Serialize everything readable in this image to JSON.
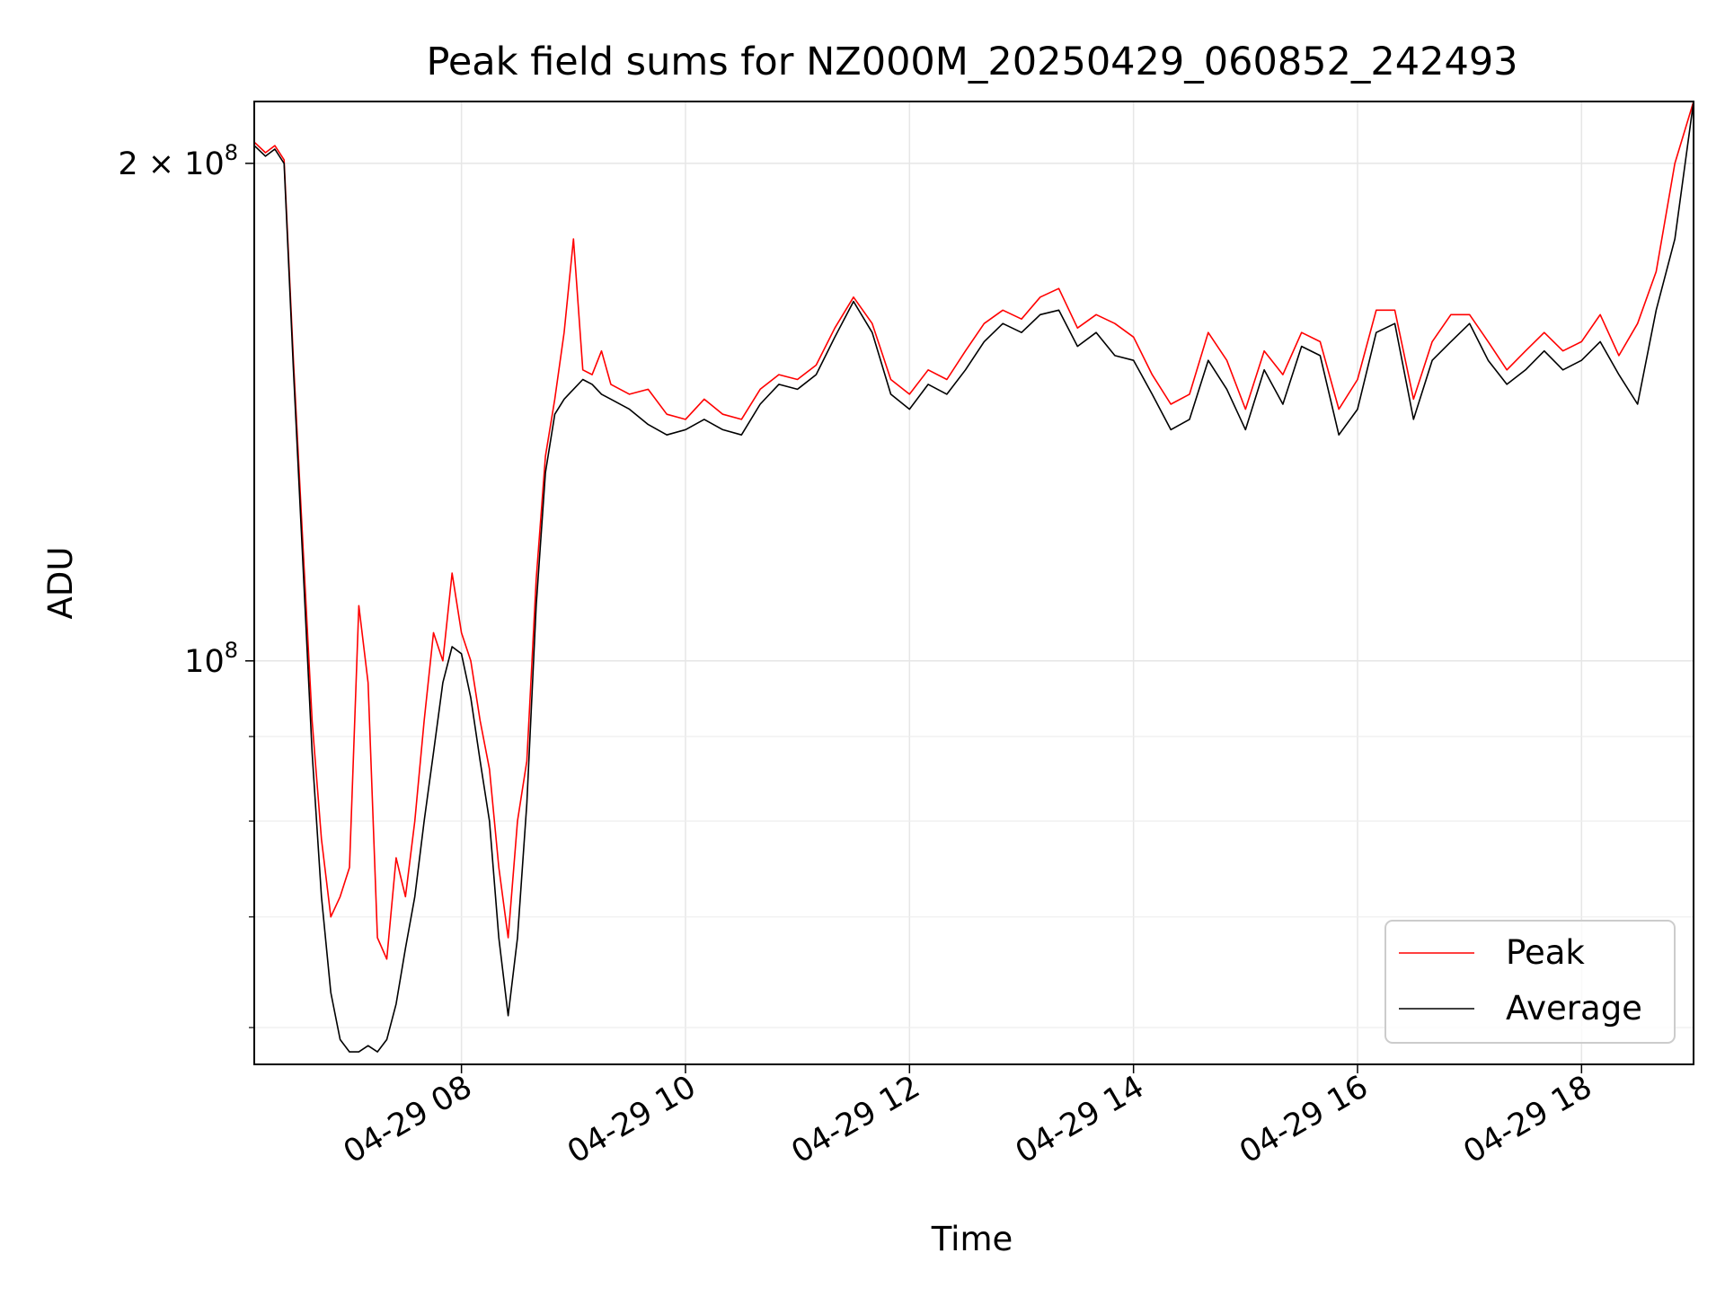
{
  "chart_data": {
    "type": "line",
    "title": "Peak field sums for NZ000M_20250429_060852_242493",
    "xlabel": "Time",
    "ylabel": "ADU",
    "y_scale": "log",
    "ylim": [
      57000000,
      218000000
    ],
    "xlim": [
      "04-29 06:09",
      "04-29 19:00"
    ],
    "grid": true,
    "legend_position": "lower right",
    "x_ticks": [
      "04-29 08",
      "04-29 10",
      "04-29 12",
      "04-29 14",
      "04-29 16",
      "04-29 18"
    ],
    "y_ticks": [
      {
        "value": 200000000,
        "label_base": "2 × 10",
        "label_exp": "8"
      },
      {
        "value": 100000000,
        "label_base": "10",
        "label_exp": "8"
      }
    ],
    "series": [
      {
        "name": "Peak",
        "color": "#ff0000"
      },
      {
        "name": "Average",
        "color": "#000000"
      }
    ],
    "x": [
      "06:09",
      "06:15",
      "06:20",
      "06:25",
      "06:30",
      "06:35",
      "06:40",
      "06:45",
      "06:50",
      "06:55",
      "07:00",
      "07:05",
      "07:10",
      "07:15",
      "07:20",
      "07:25",
      "07:30",
      "07:35",
      "07:40",
      "07:45",
      "07:50",
      "07:55",
      "08:00",
      "08:05",
      "08:10",
      "08:15",
      "08:20",
      "08:25",
      "08:30",
      "08:35",
      "08:40",
      "08:45",
      "08:50",
      "08:55",
      "09:00",
      "09:05",
      "09:10",
      "09:15",
      "09:20",
      "09:30",
      "09:40",
      "09:50",
      "10:00",
      "10:10",
      "10:20",
      "10:30",
      "10:40",
      "10:50",
      "11:00",
      "11:10",
      "11:20",
      "11:30",
      "11:40",
      "11:50",
      "12:00",
      "12:10",
      "12:20",
      "12:30",
      "12:40",
      "12:50",
      "13:00",
      "13:10",
      "13:20",
      "13:30",
      "13:40",
      "13:50",
      "14:00",
      "14:10",
      "14:20",
      "14:30",
      "14:40",
      "14:50",
      "15:00",
      "15:10",
      "15:20",
      "15:30",
      "15:40",
      "15:50",
      "16:00",
      "16:10",
      "16:20",
      "16:30",
      "16:40",
      "16:50",
      "17:00",
      "17:10",
      "17:20",
      "17:30",
      "17:40",
      "17:50",
      "18:00",
      "18:10",
      "18:20",
      "18:30",
      "18:40",
      "18:50",
      "19:00"
    ],
    "average": [
      205000000,
      202000000,
      204000000,
      200000000,
      150000000,
      115000000,
      88000000,
      72000000,
      63000000,
      59000000,
      58000000,
      58000000,
      58500000,
      58000000,
      59000000,
      62000000,
      67000000,
      72000000,
      80000000,
      88000000,
      97000000,
      102000000,
      101000000,
      95000000,
      87000000,
      80000000,
      68000000,
      61000000,
      68000000,
      82000000,
      108000000,
      130000000,
      141000000,
      144000000,
      146000000,
      148000000,
      147000000,
      145000000,
      144000000,
      142000000,
      139000000,
      137000000,
      138000000,
      140000000,
      138000000,
      137000000,
      143000000,
      147000000,
      146000000,
      149000000,
      157000000,
      165000000,
      158000000,
      145000000,
      142000000,
      147000000,
      145000000,
      150000000,
      156000000,
      160000000,
      158000000,
      162000000,
      163000000,
      155000000,
      158000000,
      153000000,
      152000000,
      145000000,
      138000000,
      140000000,
      152000000,
      146000000,
      138000000,
      150000000,
      143000000,
      155000000,
      153000000,
      137000000,
      142000000,
      158000000,
      160000000,
      140000000,
      152000000,
      156000000,
      160000000,
      152000000,
      147000000,
      150000000,
      154000000,
      150000000,
      152000000,
      156000000,
      149000000,
      143000000,
      163000000,
      180000000,
      218000000
    ],
    "peak": [
      206000000,
      203000000,
      205000000,
      201000000,
      152000000,
      118000000,
      92000000,
      78000000,
      70000000,
      72000000,
      75000000,
      108000000,
      97000000,
      68000000,
      66000000,
      76000000,
      72000000,
      80000000,
      92000000,
      104000000,
      100000000,
      113000000,
      104000000,
      100000000,
      92000000,
      86000000,
      75000000,
      68000000,
      80000000,
      87000000,
      112000000,
      133000000,
      144000000,
      158000000,
      180000000,
      150000000,
      149000000,
      154000000,
      147000000,
      145000000,
      146000000,
      141000000,
      140000000,
      144000000,
      141000000,
      140000000,
      146000000,
      149000000,
      148000000,
      151000000,
      159000000,
      166000000,
      160000000,
      148000000,
      145000000,
      150000000,
      148000000,
      154000000,
      160000000,
      163000000,
      161000000,
      166000000,
      168000000,
      159000000,
      162000000,
      160000000,
      157000000,
      149000000,
      143000000,
      145000000,
      158000000,
      152000000,
      142000000,
      154000000,
      149000000,
      158000000,
      156000000,
      142000000,
      148000000,
      163000000,
      163000000,
      144000000,
      156000000,
      162000000,
      162000000,
      156000000,
      150000000,
      154000000,
      158000000,
      154000000,
      156000000,
      162000000,
      153000000,
      160000000,
      172000000,
      200000000,
      220000000
    ]
  }
}
